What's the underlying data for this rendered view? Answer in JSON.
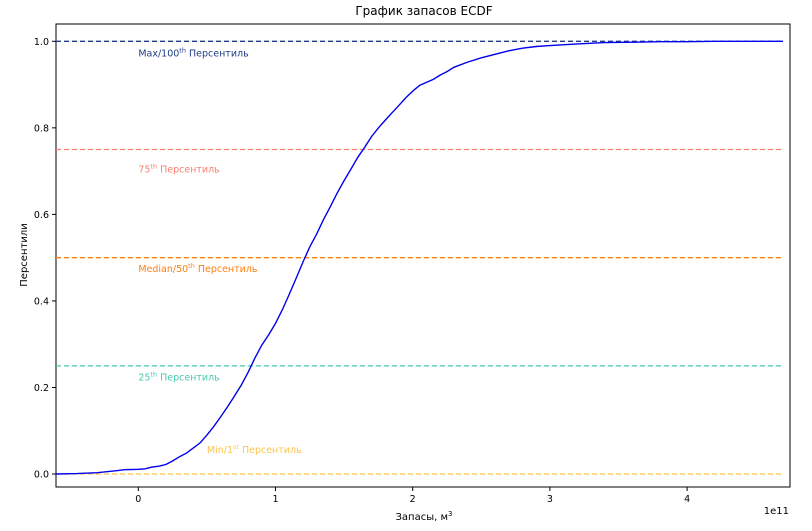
{
  "chart_data": {
    "type": "line",
    "title": "График запасов ECDF",
    "xlabel_main": "Запасы, м",
    "xlabel_sup": "3",
    "ylabel": "Персентили",
    "x_offset_label": "1e11",
    "xlim": [
      -0.6,
      4.75
    ],
    "ylim": [
      -0.03,
      1.04
    ],
    "x_ticks": [
      0,
      1,
      2,
      3,
      4
    ],
    "x_tick_labels": [
      "0",
      "1",
      "2",
      "3",
      "4"
    ],
    "y_ticks": [
      0.0,
      0.2,
      0.4,
      0.6,
      0.8,
      1.0
    ],
    "y_tick_labels": [
      "0.0",
      "0.2",
      "0.4",
      "0.6",
      "0.8",
      "1.0"
    ],
    "grid": false,
    "series": [
      {
        "color": "#0000ee",
        "x": [
          -0.6,
          -0.45,
          -0.3,
          -0.15,
          -0.1,
          0,
          0.05,
          0.1,
          0.15,
          0.2,
          0.25,
          0.3,
          0.35,
          0.4,
          0.45,
          0.5,
          0.55,
          0.6,
          0.65,
          0.7,
          0.75,
          0.8,
          0.85,
          0.9,
          0.95,
          1.0,
          1.05,
          1.1,
          1.15,
          1.2,
          1.25,
          1.3,
          1.35,
          1.4,
          1.45,
          1.5,
          1.55,
          1.6,
          1.65,
          1.7,
          1.75,
          1.8,
          1.85,
          1.9,
          1.95,
          2.0,
          2.05,
          2.1,
          2.15,
          2.2,
          2.25,
          2.3,
          2.4,
          2.5,
          2.6,
          2.7,
          2.8,
          2.9,
          3.0,
          3.2,
          3.4,
          3.6,
          3.8,
          4.0,
          4.2,
          4.4,
          4.7
        ],
        "y": [
          0.0,
          0.001,
          0.003,
          0.008,
          0.01,
          0.011,
          0.012,
          0.016,
          0.018,
          0.022,
          0.03,
          0.04,
          0.048,
          0.06,
          0.072,
          0.09,
          0.11,
          0.132,
          0.155,
          0.18,
          0.205,
          0.235,
          0.268,
          0.298,
          0.322,
          0.348,
          0.38,
          0.415,
          0.452,
          0.49,
          0.525,
          0.555,
          0.588,
          0.618,
          0.65,
          0.678,
          0.705,
          0.732,
          0.755,
          0.78,
          0.8,
          0.818,
          0.835,
          0.852,
          0.87,
          0.885,
          0.898,
          0.905,
          0.912,
          0.922,
          0.93,
          0.94,
          0.952,
          0.962,
          0.97,
          0.978,
          0.984,
          0.988,
          0.99,
          0.994,
          0.997,
          0.998,
          0.999,
          0.999,
          1.0,
          1.0,
          1.0
        ]
      }
    ],
    "hlines": [
      {
        "y": 1.0,
        "color": "#1f3c88",
        "label_prefix": "Max/100",
        "label_sup": "th",
        "label_suffix": " Персентиль",
        "label_x": 0.0,
        "label_y": 0.965
      },
      {
        "y": 0.75,
        "color": "#fa8072",
        "label_prefix": "75",
        "label_sup": "th",
        "label_suffix": " Персентиль",
        "label_x": 0.0,
        "label_y": 0.697
      },
      {
        "y": 0.5,
        "color": "#ff7f0e",
        "label_prefix": "Median/50",
        "label_sup": "th",
        "label_suffix": " Персентиль",
        "label_x": 0.0,
        "label_y": 0.467
      },
      {
        "y": 0.25,
        "color": "#48c9b0",
        "label_prefix": "25",
        "label_sup": "th",
        "label_suffix": " Персентиль",
        "label_x": 0.0,
        "label_y": 0.216
      },
      {
        "y": 0.0,
        "color": "#ffc34a",
        "label_prefix": "Min/1",
        "label_sup": "st",
        "label_suffix": " Персентиль",
        "label_x": 0.5,
        "label_y": 0.048
      }
    ]
  }
}
